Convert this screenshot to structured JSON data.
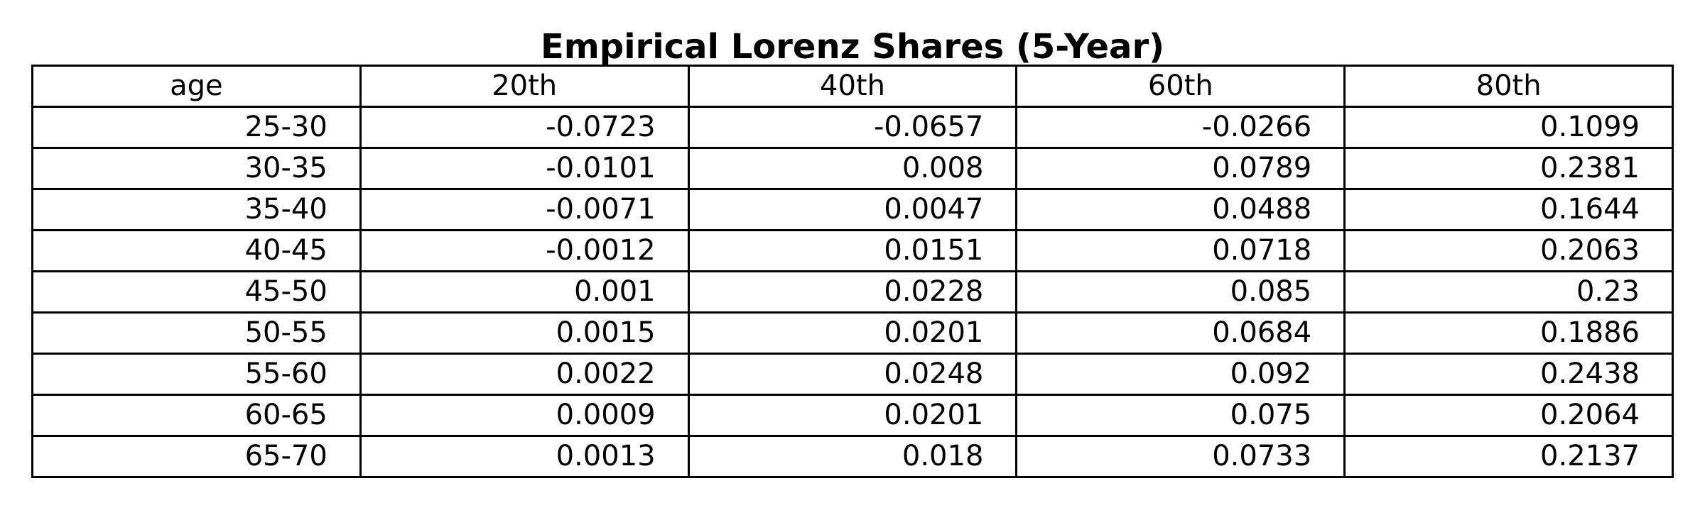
{
  "chart_data": {
    "type": "table",
    "title": "Empirical Lorenz Shares (5-Year)",
    "columns": [
      "age",
      "20th",
      "40th",
      "60th",
      "80th"
    ],
    "rows": [
      [
        "25-30",
        "-0.0723",
        "-0.0657",
        "-0.0266",
        "0.1099"
      ],
      [
        "30-35",
        "-0.0101",
        "0.008",
        "0.0789",
        "0.2381"
      ],
      [
        "35-40",
        "-0.0071",
        "0.0047",
        "0.0488",
        "0.1644"
      ],
      [
        "40-45",
        "-0.0012",
        "0.0151",
        "0.0718",
        "0.2063"
      ],
      [
        "45-50",
        "0.001",
        "0.0228",
        "0.085",
        "0.23"
      ],
      [
        "50-55",
        "0.0015",
        "0.0201",
        "0.0684",
        "0.1886"
      ],
      [
        "55-60",
        "0.0022",
        "0.0248",
        "0.092",
        "0.2438"
      ],
      [
        "60-65",
        "0.0009",
        "0.0201",
        "0.075",
        "0.2064"
      ],
      [
        "65-70",
        "0.0013",
        "0.018",
        "0.0733",
        "0.2137"
      ]
    ],
    "grid": true
  }
}
